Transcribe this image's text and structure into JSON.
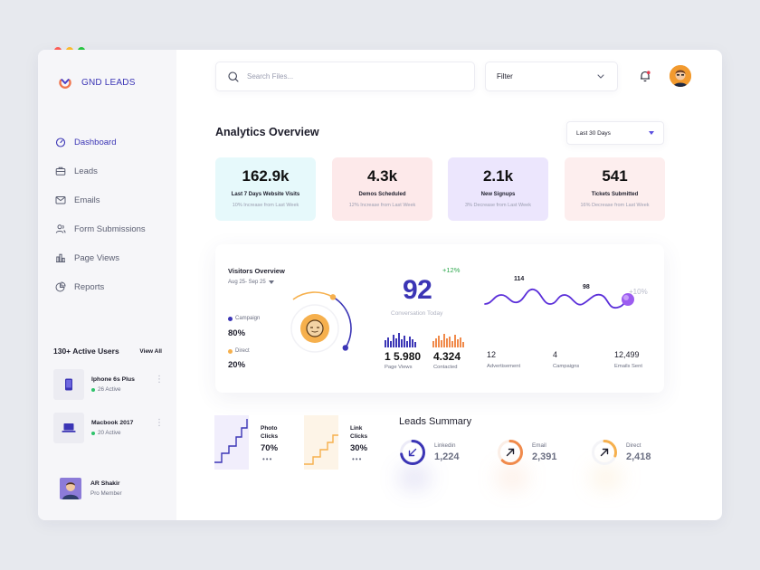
{
  "window_controls": [
    "close",
    "minimize",
    "maximize"
  ],
  "colors": {
    "accent": "#3b35b5",
    "orange": "#f08a4b",
    "yellow": "#f6b04d",
    "green": "#2fc36b"
  },
  "brand": {
    "name": "GND LEADS",
    "icon": "logo-icon"
  },
  "sidebar": {
    "items": [
      {
        "label": "Dashboard",
        "icon": "dashboard-icon",
        "active": true
      },
      {
        "label": "Leads",
        "icon": "briefcase-icon"
      },
      {
        "label": "Emails",
        "icon": "mail-icon"
      },
      {
        "label": "Form Submissions",
        "icon": "users-icon"
      },
      {
        "label": "Page Views",
        "icon": "bar-chart-icon"
      },
      {
        "label": "Reports",
        "icon": "pie-chart-icon"
      }
    ],
    "active_users": {
      "title": "130+ Active Users",
      "view_all": "View All",
      "devices": [
        {
          "name": "Iphone 6s Plus",
          "active": "26 Active",
          "icon": "phone-icon"
        },
        {
          "name": "Macbook 2017",
          "active": "20 Active",
          "icon": "laptop-icon"
        }
      ]
    },
    "profile": {
      "name": "AR Shakir",
      "role": "Pro Member"
    }
  },
  "header": {
    "search_placeholder": "Search Files...",
    "filter_label": "Filter"
  },
  "analytics": {
    "title": "Analytics Overview",
    "range": "Last 30 Days",
    "stats": [
      {
        "value": "162.9k",
        "label": "Last 7 Days Website Visits",
        "sub": "10% Increase from Last Week",
        "bg": "#e6f9fb"
      },
      {
        "value": "4.3k",
        "label": "Demos Scheduled",
        "sub": "12% Increase from Last Week",
        "bg": "#fde9ea"
      },
      {
        "value": "2.1k",
        "label": "New Signups",
        "sub": "3% Decrease from Last Week",
        "bg": "#ece6fd"
      },
      {
        "value": "541",
        "label": "Tickets Submitted",
        "sub": "16% Decrease from Last Week",
        "bg": "#fdeeee"
      }
    ]
  },
  "visitors": {
    "title": "Visitors Overview",
    "range": "Aug 25- Sep 25",
    "campaign_label": "Campaign",
    "campaign_pct": "80%",
    "campaign_value": 80,
    "direct_label": "Direct",
    "direct_pct": "20%",
    "direct_value": 20,
    "conversion_value": "92",
    "conversion_change": "+12%",
    "conversion_label": "Conversation Today",
    "page_views_value": "1 5.980",
    "page_views_label": "Page Views",
    "contacted_value": "4.324",
    "contacted_label": "Contacted",
    "wave_peak_1": "114",
    "wave_peak_2": "98",
    "wave_change": "+10%",
    "advertisement_value": "12",
    "advertisement_label": "Advertisement",
    "campaigns_value": "4",
    "campaigns_label": "Campaigns",
    "emails_sent_value": "12,499",
    "emails_sent_label": "Emails Sent"
  },
  "clicks": [
    {
      "label": "Photo Clicks",
      "pct": "70%",
      "more": "•••"
    },
    {
      "label": "Link Clicks",
      "pct": "30%",
      "more": "•••"
    }
  ],
  "leads_summary": {
    "title": "Leads Summary",
    "items": [
      {
        "label": "Linkedin",
        "value": "1,224",
        "color": "#3b35b5",
        "icon": "arrow-down-left-icon",
        "progress": 0.72
      },
      {
        "label": "Email",
        "value": "2,391",
        "color": "#f08a4b",
        "icon": "arrow-up-right-icon",
        "progress": 0.62
      },
      {
        "label": "Direct",
        "value": "2,418",
        "color": "#f6b04d",
        "icon": "arrow-up-right-icon",
        "progress": 0.3
      }
    ]
  }
}
